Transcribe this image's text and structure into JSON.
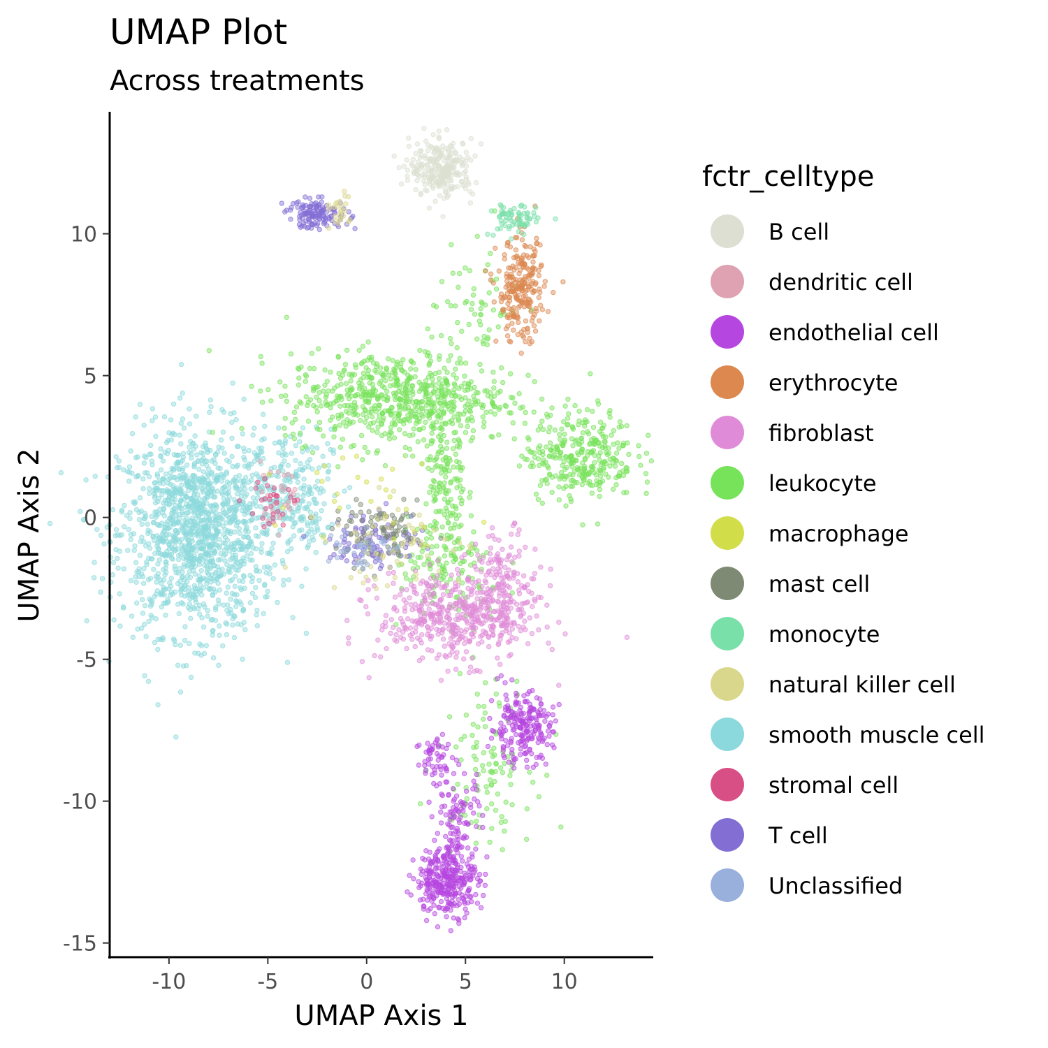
{
  "chart_data": {
    "type": "scatter",
    "title": "UMAP Plot",
    "subtitle": "Across treatments",
    "xlabel": "UMAP Axis 1",
    "ylabel": "UMAP Axis 2",
    "xlim": [
      -13,
      14.5
    ],
    "ylim": [
      -15.5,
      14.3
    ],
    "xticks": [
      -10,
      -5,
      0,
      5,
      10
    ],
    "yticks": [
      -15,
      -10,
      -5,
      0,
      5,
      10
    ],
    "xtick_labels": [
      "-10",
      "-5",
      "0",
      "5",
      "10"
    ],
    "ytick_labels": [
      "-15",
      "-10",
      "-5",
      "0",
      "5",
      "10"
    ],
    "grid": false,
    "legend_title": "fctr_celltype",
    "legend_position": "right",
    "categories": [
      {
        "name": "B cell",
        "color": "#dcdfd1"
      },
      {
        "name": "dendritic cell",
        "color": "#dea2b2"
      },
      {
        "name": "endothelial cell",
        "color": "#b646e0"
      },
      {
        "name": "erythrocyte",
        "color": "#dc884f"
      },
      {
        "name": "fibroblast",
        "color": "#df8bd8"
      },
      {
        "name": "leukocyte",
        "color": "#77e35a"
      },
      {
        "name": "macrophage",
        "color": "#d2dd4a"
      },
      {
        "name": "mast cell",
        "color": "#7e8a73"
      },
      {
        "name": "monocyte",
        "color": "#7ae0aa"
      },
      {
        "name": "natural killer cell",
        "color": "#d9d78c"
      },
      {
        "name": "smooth muscle cell",
        "color": "#8bd9dc"
      },
      {
        "name": "stromal cell",
        "color": "#d84f86"
      },
      {
        "name": "T cell",
        "color": "#836ed4"
      },
      {
        "name": "Unclassified",
        "color": "#99afdc"
      }
    ],
    "clusters": [
      {
        "category": "smooth muscle cell",
        "cx": -8.5,
        "cy": -0.5,
        "sx": 2.0,
        "sy": 1.8,
        "n": 1400
      },
      {
        "category": "smooth muscle cell",
        "cx": -4.0,
        "cy": 1.3,
        "sx": 1.1,
        "sy": 0.9,
        "n": 160
      },
      {
        "category": "smooth muscle cell",
        "cx": -3.0,
        "cy": -0.2,
        "sx": 0.6,
        "sy": 0.5,
        "n": 50
      },
      {
        "category": "leukocyte",
        "cx": 1.5,
        "cy": 4.2,
        "sx": 2.8,
        "sy": 0.8,
        "n": 650
      },
      {
        "category": "leukocyte",
        "cx": 10.8,
        "cy": 2.2,
        "sx": 1.4,
        "sy": 0.8,
        "n": 320
      },
      {
        "category": "leukocyte",
        "cx": 4.0,
        "cy": 1.0,
        "sx": 0.5,
        "sy": 1.6,
        "n": 160
      },
      {
        "category": "leukocyte",
        "cx": 5.5,
        "cy": 7.0,
        "sx": 1.2,
        "sy": 1.4,
        "n": 80
      },
      {
        "category": "leukocyte",
        "cx": 4.0,
        "cy": -2.0,
        "sx": 1.5,
        "sy": 1.0,
        "n": 120
      },
      {
        "category": "leukocyte",
        "cx": 6.0,
        "cy": -8.5,
        "sx": 1.2,
        "sy": 1.4,
        "n": 110
      },
      {
        "category": "fibroblast",
        "cx": 4.6,
        "cy": -3.5,
        "sx": 2.0,
        "sy": 0.8,
        "n": 500
      },
      {
        "category": "fibroblast",
        "cx": 7.0,
        "cy": -2.2,
        "sx": 0.7,
        "sy": 0.9,
        "n": 120
      },
      {
        "category": "endothelial cell",
        "cx": 4.1,
        "cy": -12.8,
        "sx": 0.8,
        "sy": 0.6,
        "n": 300
      },
      {
        "category": "endothelial cell",
        "cx": 7.8,
        "cy": -7.4,
        "sx": 0.8,
        "sy": 0.6,
        "n": 220
      },
      {
        "category": "endothelial cell",
        "cx": 4.6,
        "cy": -10.8,
        "sx": 0.6,
        "sy": 1.0,
        "n": 120
      },
      {
        "category": "endothelial cell",
        "cx": 3.5,
        "cy": -8.5,
        "sx": 0.5,
        "sy": 0.5,
        "n": 50
      },
      {
        "category": "B cell",
        "cx": 3.8,
        "cy": 12.3,
        "sx": 0.8,
        "sy": 0.5,
        "n": 260
      },
      {
        "category": "erythrocyte",
        "cx": 7.8,
        "cy": 8.0,
        "sx": 0.6,
        "sy": 0.9,
        "n": 240
      },
      {
        "category": "monocyte",
        "cx": 7.4,
        "cy": 10.5,
        "sx": 0.6,
        "sy": 0.3,
        "n": 70
      },
      {
        "category": "T cell",
        "cx": -2.5,
        "cy": 10.7,
        "sx": 0.8,
        "sy": 0.25,
        "n": 130
      },
      {
        "category": "T cell",
        "cx": 0.5,
        "cy": -0.8,
        "sx": 1.2,
        "sy": 0.5,
        "n": 100
      },
      {
        "category": "mast cell",
        "cx": 0.8,
        "cy": -0.6,
        "sx": 1.2,
        "sy": 0.5,
        "n": 90
      },
      {
        "category": "natural killer cell",
        "cx": 1.5,
        "cy": -1.0,
        "sx": 1.8,
        "sy": 0.8,
        "n": 60
      },
      {
        "category": "natural killer cell",
        "cx": -1.5,
        "cy": 10.8,
        "sx": 0.3,
        "sy": 0.3,
        "n": 25
      },
      {
        "category": "dendritic cell",
        "cx": -4.5,
        "cy": 0.8,
        "sx": 0.8,
        "sy": 0.5,
        "n": 30
      },
      {
        "category": "stromal cell",
        "cx": -4.8,
        "cy": 0.5,
        "sx": 0.7,
        "sy": 0.5,
        "n": 30
      },
      {
        "category": "macrophage",
        "cx": 0.5,
        "cy": 1.0,
        "sx": 2.0,
        "sy": 1.0,
        "n": 30
      },
      {
        "category": "Unclassified",
        "cx": -0.5,
        "cy": -1.0,
        "sx": 0.8,
        "sy": 0.4,
        "n": 40
      }
    ]
  }
}
